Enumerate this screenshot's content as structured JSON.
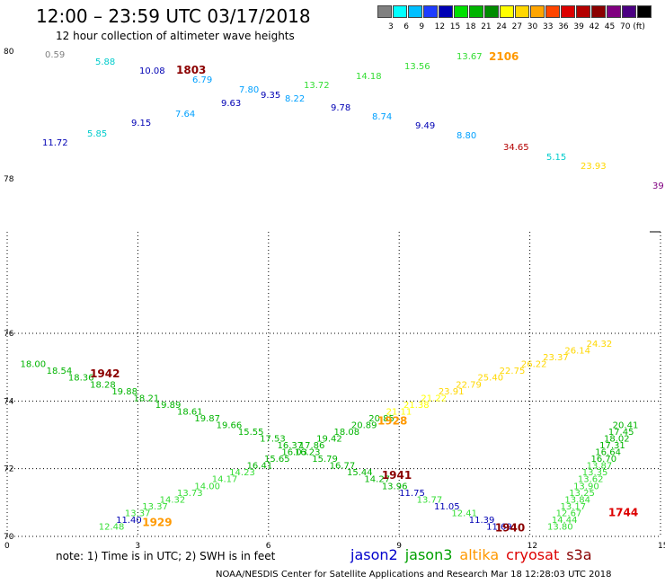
{
  "header": {
    "title": "12:00  –  23:59 UTC 03/17/2018",
    "subtitle": "12 hour collection of altimeter wave heights"
  },
  "legend": {
    "colors": [
      "#808080",
      "#00ffff",
      "#00bfff",
      "#1e3cff",
      "#0000b4",
      "#00e000",
      "#00b400",
      "#008c00",
      "#ffff00",
      "#ffd700",
      "#ffa500",
      "#ff4500",
      "#dc0000",
      "#b40000",
      "#8b0000",
      "#800080",
      "#4b0082",
      "#000000"
    ],
    "labels": [
      "3",
      "6",
      "9",
      "12",
      "15",
      "18",
      "21",
      "24",
      "27",
      "30",
      "33",
      "36",
      "39",
      "42",
      "45",
      "70 (ft)"
    ]
  },
  "footer": {
    "note": "note: 1) Time is in UTC; 2) SWH is in feet",
    "credit": "NOAA/NESDIS Center for Satellite Applications and Research    Mar 18 12:28:03 UTC 2018",
    "satellites": [
      {
        "name": "jason2",
        "color": "#0000cc"
      },
      {
        "name": "jason3",
        "color": "#00a000"
      },
      {
        "name": "altika",
        "color": "#ff9900"
      },
      {
        "name": "cryosat",
        "color": "#dd0000"
      },
      {
        "name": "s3a",
        "color": "#880000"
      }
    ]
  },
  "chart_data": [
    {
      "type": "scatter",
      "panel": "upper",
      "y_ticks": [
        "80",
        "78"
      ],
      "points": [
        {
          "label": "0.59",
          "color": "#808080"
        },
        {
          "label": "5.88",
          "color": "#00cccc"
        },
        {
          "label": "10.08",
          "color": "#0000b4"
        },
        {
          "label": "1803",
          "color": "#8b0000"
        },
        {
          "label": "6.79",
          "color": "#00a0ff"
        },
        {
          "label": "7.80",
          "color": "#00a0ff"
        },
        {
          "label": "9.35",
          "color": "#0000b4"
        },
        {
          "label": "8.22",
          "color": "#00a0ff"
        },
        {
          "label": "13.72",
          "color": "#33dd33"
        },
        {
          "label": "14.18",
          "color": "#33dd33"
        },
        {
          "label": "13.56",
          "color": "#33dd33"
        },
        {
          "label": "13.67",
          "color": "#33dd33"
        },
        {
          "label": "2106",
          "color": "#ff9900"
        },
        {
          "label": "7.64",
          "color": "#00a0ff"
        },
        {
          "label": "9.63",
          "color": "#0000b4"
        },
        {
          "label": "9.78",
          "color": "#0000b4"
        },
        {
          "label": "8.74",
          "color": "#00a0ff"
        },
        {
          "label": "9.15",
          "color": "#0000b4"
        },
        {
          "label": "11.72",
          "color": "#0000b4"
        },
        {
          "label": "5.85",
          "color": "#00cccc"
        },
        {
          "label": "9.49",
          "color": "#0000b4"
        },
        {
          "label": "8.80",
          "color": "#00a0ff"
        },
        {
          "label": "34.65",
          "color": "#b40000"
        },
        {
          "label": "5.15",
          "color": "#00cccc"
        },
        {
          "label": "23.93",
          "color": "#ffd700"
        },
        {
          "label": "39",
          "color": "#800080"
        }
      ]
    },
    {
      "type": "scatter",
      "panel": "lower",
      "xlim": [
        0,
        15
      ],
      "ylim": [
        70,
        79
      ],
      "x_ticks": [
        0,
        3,
        6,
        9,
        12,
        15
      ],
      "y_ticks": [
        70,
        72,
        74,
        76
      ],
      "grid": true,
      "tracks": [
        {
          "name": "track-1942",
          "points": [
            {
              "x": 0.3,
              "y": 75.0,
              "label": "18.00",
              "color": "#00b400"
            },
            {
              "x": 0.9,
              "y": 74.8,
              "label": "18.54",
              "color": "#00b400"
            },
            {
              "x": 1.4,
              "y": 74.6,
              "label": "18.36",
              "color": "#00b400"
            },
            {
              "x": 1.9,
              "y": 74.4,
              "label": "18.28",
              "color": "#00b400"
            },
            {
              "x": 2.4,
              "y": 74.2,
              "label": "19.88",
              "color": "#00b400"
            },
            {
              "x": 2.9,
              "y": 74.0,
              "label": "18.21",
              "color": "#00b400"
            },
            {
              "x": 3.4,
              "y": 73.8,
              "label": "19.89",
              "color": "#00b400"
            },
            {
              "x": 3.9,
              "y": 73.6,
              "label": "18.61",
              "color": "#00b400"
            },
            {
              "x": 4.3,
              "y": 73.4,
              "label": "19.87",
              "color": "#00b400"
            },
            {
              "x": 4.8,
              "y": 73.2,
              "label": "19.66",
              "color": "#00b400"
            },
            {
              "x": 5.3,
              "y": 73.0,
              "label": "15.55",
              "color": "#00b400"
            },
            {
              "x": 5.8,
              "y": 72.8,
              "label": "17.53",
              "color": "#00b400"
            },
            {
              "x": 6.2,
              "y": 72.6,
              "label": "16.37",
              "color": "#00b400"
            },
            {
              "x": 6.6,
              "y": 72.4,
              "label": "16.23",
              "color": "#00b400"
            },
            {
              "x": 7.0,
              "y": 72.2,
              "label": "15.79",
              "color": "#00b400"
            },
            {
              "x": 7.4,
              "y": 72.0,
              "label": "16.77",
              "color": "#00b400"
            },
            {
              "x": 7.8,
              "y": 71.8,
              "label": "15.44",
              "color": "#00b400"
            },
            {
              "x": 8.2,
              "y": 71.6,
              "label": "14.27",
              "color": "#00b400"
            },
            {
              "x": 8.6,
              "y": 71.4,
              "label": "13.96",
              "color": "#00b400"
            },
            {
              "x": 9.0,
              "y": 71.2,
              "label": "11.75",
              "color": "#0000b4"
            },
            {
              "x": 9.4,
              "y": 71.0,
              "label": "13.77",
              "color": "#33dd33"
            },
            {
              "x": 9.8,
              "y": 70.8,
              "label": "11.05",
              "color": "#0000b4"
            },
            {
              "x": 10.2,
              "y": 70.6,
              "label": "12.41",
              "color": "#33dd33"
            },
            {
              "x": 10.6,
              "y": 70.4,
              "label": "11.39",
              "color": "#0000b4"
            },
            {
              "x": 11.0,
              "y": 70.2,
              "label": "11.69",
              "color": "#0000b4"
            }
          ]
        },
        {
          "name": "track-1929",
          "points": [
            {
              "x": 2.1,
              "y": 70.2,
              "label": "12.48",
              "color": "#33dd33"
            },
            {
              "x": 2.5,
              "y": 70.4,
              "label": "11.40",
              "color": "#0000b4"
            },
            {
              "x": 2.7,
              "y": 70.6,
              "label": "13.37",
              "color": "#33dd33"
            },
            {
              "x": 3.1,
              "y": 70.8,
              "label": "13.37",
              "color": "#33dd33"
            },
            {
              "x": 3.5,
              "y": 71.0,
              "label": "14.32",
              "color": "#33dd33"
            },
            {
              "x": 3.9,
              "y": 71.2,
              "label": "13.73",
              "color": "#33dd33"
            },
            {
              "x": 4.3,
              "y": 71.4,
              "label": "14.00",
              "color": "#33dd33"
            },
            {
              "x": 4.7,
              "y": 71.6,
              "label": "14.17",
              "color": "#33dd33"
            },
            {
              "x": 5.1,
              "y": 71.8,
              "label": "14.23",
              "color": "#33dd33"
            },
            {
              "x": 5.5,
              "y": 72.0,
              "label": "16.41",
              "color": "#00b400"
            },
            {
              "x": 5.9,
              "y": 72.2,
              "label": "15.65",
              "color": "#00b400"
            },
            {
              "x": 6.3,
              "y": 72.4,
              "label": "16.03",
              "color": "#00b400"
            },
            {
              "x": 6.7,
              "y": 72.6,
              "label": "17.86",
              "color": "#00b400"
            },
            {
              "x": 7.1,
              "y": 72.8,
              "label": "19.42",
              "color": "#00b400"
            },
            {
              "x": 7.5,
              "y": 73.0,
              "label": "18.08",
              "color": "#00b400"
            },
            {
              "x": 7.9,
              "y": 73.2,
              "label": "20.89",
              "color": "#00b400"
            },
            {
              "x": 8.3,
              "y": 73.4,
              "label": "20.85",
              "color": "#00b400"
            },
            {
              "x": 8.7,
              "y": 73.6,
              "label": "21.11",
              "color": "#ffff00"
            },
            {
              "x": 9.1,
              "y": 73.8,
              "label": "21.38",
              "color": "#ffff00"
            },
            {
              "x": 9.5,
              "y": 74.0,
              "label": "21.22",
              "color": "#ffff00"
            },
            {
              "x": 9.9,
              "y": 74.2,
              "label": "23.91",
              "color": "#ffd700"
            },
            {
              "x": 10.3,
              "y": 74.4,
              "label": "22.79",
              "color": "#ffd700"
            },
            {
              "x": 10.8,
              "y": 74.6,
              "label": "25.40",
              "color": "#ffd700"
            },
            {
              "x": 11.3,
              "y": 74.8,
              "label": "22.75",
              "color": "#ffd700"
            },
            {
              "x": 11.8,
              "y": 75.0,
              "label": "26.22",
              "color": "#ffd700"
            },
            {
              "x": 12.3,
              "y": 75.2,
              "label": "23.37",
              "color": "#ffd700"
            },
            {
              "x": 12.8,
              "y": 75.4,
              "label": "26.14",
              "color": "#ffd700"
            },
            {
              "x": 13.3,
              "y": 75.6,
              "label": "24.32",
              "color": "#ffd700"
            }
          ]
        },
        {
          "name": "track-1744",
          "points": [
            {
              "x": 12.4,
              "y": 70.2,
              "label": "13.80",
              "color": "#33dd33"
            },
            {
              "x": 12.5,
              "y": 70.4,
              "label": "14.44",
              "color": "#33dd33"
            },
            {
              "x": 12.6,
              "y": 70.6,
              "label": "12.67",
              "color": "#33dd33"
            },
            {
              "x": 12.7,
              "y": 70.8,
              "label": "13.17",
              "color": "#33dd33"
            },
            {
              "x": 12.8,
              "y": 71.0,
              "label": "13.84",
              "color": "#33dd33"
            },
            {
              "x": 12.9,
              "y": 71.2,
              "label": "13.25",
              "color": "#33dd33"
            },
            {
              "x": 13.0,
              "y": 71.4,
              "label": "13.90",
              "color": "#33dd33"
            },
            {
              "x": 13.1,
              "y": 71.6,
              "label": "13.62",
              "color": "#33dd33"
            },
            {
              "x": 13.2,
              "y": 71.8,
              "label": "13.35",
              "color": "#33dd33"
            },
            {
              "x": 13.3,
              "y": 72.0,
              "label": "13.87",
              "color": "#33dd33"
            },
            {
              "x": 13.4,
              "y": 72.2,
              "label": "16.70",
              "color": "#00b400"
            },
            {
              "x": 13.5,
              "y": 72.4,
              "label": "16.64",
              "color": "#00b400"
            },
            {
              "x": 13.6,
              "y": 72.6,
              "label": "17.31",
              "color": "#00b400"
            },
            {
              "x": 13.7,
              "y": 72.8,
              "label": "18.02",
              "color": "#00b400"
            },
            {
              "x": 13.8,
              "y": 73.0,
              "label": "17.45",
              "color": "#00b400"
            },
            {
              "x": 13.9,
              "y": 73.2,
              "label": "20.41",
              "color": "#00b400"
            }
          ]
        }
      ],
      "track_labels": [
        {
          "label": "1942",
          "x": 1.9,
          "y": 74.7,
          "color": "#8b0000"
        },
        {
          "label": "1928",
          "x": 8.5,
          "y": 73.3,
          "color": "#ff9900"
        },
        {
          "label": "1941",
          "x": 8.6,
          "y": 71.7,
          "color": "#8b0000"
        },
        {
          "label": "1929",
          "x": 3.1,
          "y": 70.3,
          "color": "#ff9900"
        },
        {
          "label": "1940",
          "x": 11.2,
          "y": 70.15,
          "color": "#8b0000"
        },
        {
          "label": "1744",
          "x": 13.8,
          "y": 70.6,
          "color": "#dd0000"
        }
      ]
    }
  ]
}
